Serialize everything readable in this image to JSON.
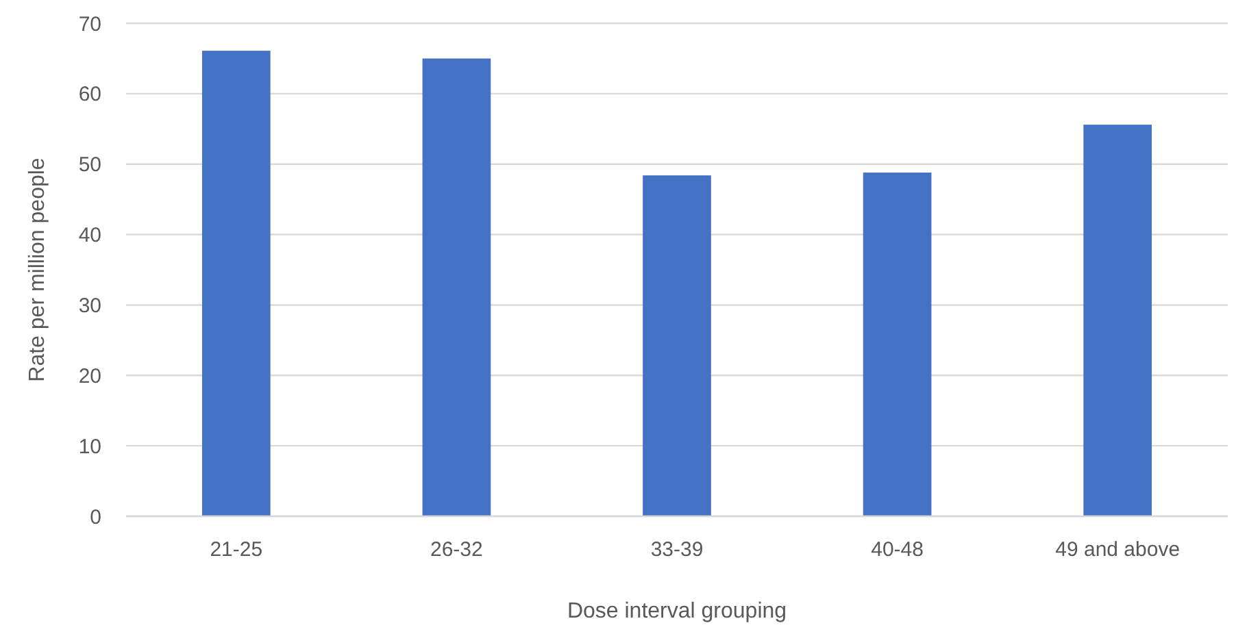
{
  "chart_data": {
    "type": "bar",
    "xlabel": "Dose interval grouping",
    "ylabel": "Rate per million people",
    "categories": [
      "21-25",
      "26-32",
      "33-39",
      "40-48",
      "49 and above"
    ],
    "values": [
      66.1,
      65,
      48.4,
      48.8,
      55.6
    ],
    "color": "#4472c4",
    "ylim": [
      0,
      70
    ],
    "yticks": [
      0,
      10,
      20,
      30,
      40,
      50,
      60,
      70
    ],
    "grid": "y"
  }
}
